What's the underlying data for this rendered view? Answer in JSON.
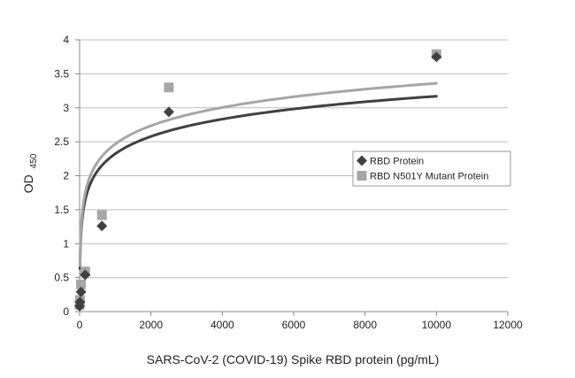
{
  "chart_data": {
    "type": "scatter",
    "xlabel": "SARS-CoV-2 (COVID-19) Spike RBD protein  (pg/mL)",
    "ylabel": "OD",
    "ylabel_subscript": "450",
    "xlim": [
      0,
      12000
    ],
    "ylim": [
      0,
      4
    ],
    "x_ticks": [
      0,
      2000,
      4000,
      6000,
      8000,
      10000,
      12000
    ],
    "x_tick_labels": [
      "0",
      "2000",
      "4000",
      "6000",
      "8000",
      "10000",
      "12000"
    ],
    "y_ticks": [
      0,
      0.5,
      1,
      1.5,
      2,
      2.5,
      3,
      3.5,
      4
    ],
    "y_tick_labels": [
      "0",
      "0.5",
      "1",
      "1.5",
      "2",
      "2.5",
      "3",
      "3.5",
      "4"
    ],
    "grid": "horizontal",
    "legend_position": "right",
    "series": [
      {
        "name": "RBD Protein",
        "marker": "diamond",
        "color": "#404040",
        "x": [
          0,
          10,
          39,
          156,
          625,
          2500,
          10000
        ],
        "y": [
          0.08,
          0.14,
          0.29,
          0.54,
          1.26,
          2.94,
          3.75
        ]
      },
      {
        "name": "RBD N501Y Mutant Protein",
        "marker": "square",
        "color": "#a6a6a6",
        "x": [
          0,
          10,
          39,
          156,
          625,
          2500,
          10000
        ],
        "y": [
          0.1,
          0.17,
          0.4,
          0.59,
          1.42,
          3.3,
          3.79
        ]
      }
    ],
    "trendlines": [
      {
        "series": "RBD Protein",
        "type": "logarithmic",
        "color": "#404040",
        "x": [
          10,
          10000
        ],
        "y": [
          0.63,
          3.17
        ]
      },
      {
        "series": "RBD N501Y Mutant Protein",
        "type": "logarithmic",
        "color": "#a6a6a6",
        "x": [
          10,
          10000
        ],
        "y": [
          0.68,
          3.36
        ]
      }
    ]
  }
}
